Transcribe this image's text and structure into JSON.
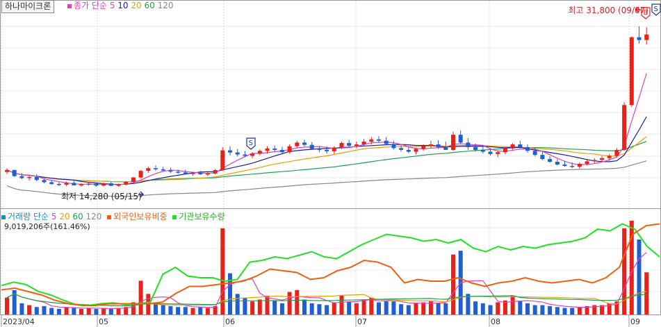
{
  "header": {
    "stock_name": "하나마이크론",
    "price_legend": {
      "label": "종가 단순",
      "periods": [
        "5",
        "10",
        "20",
        "60",
        "120"
      ]
    }
  },
  "volume_legend": {
    "label": "거래량 단순",
    "periods": [
      "5",
      "20",
      "60",
      "120"
    ],
    "foreign_label": "외국인보유비중",
    "inst_label": "기관보유수량",
    "total": "9,019,206주(161.46%)"
  },
  "annotations": {
    "high": "최고 31,800 (09/07)",
    "low": "최저 14,280 (05/15)",
    "badge_s": "S",
    "badge_b": "B"
  },
  "colors": {
    "up": "#e8221b",
    "down": "#1f5fd1",
    "ma5": "#e040c0",
    "ma10": "#1a1aa0",
    "ma20": "#e6a000",
    "ma60": "#1ea050",
    "ma120": "#888888",
    "foreign": "#ee6010",
    "inst": "#22e022"
  },
  "chart_data": {
    "type": "candlestick",
    "x_tick_labels": [
      "2023/04",
      "05",
      "06",
      "07",
      "08",
      "09"
    ],
    "price_range": [
      12000,
      33000
    ],
    "notes": "Daily OHLC approximated from pixel positions, price derived from labelled high/low.",
    "ohlc": [
      [
        15900,
        16280,
        15660,
        16110
      ],
      [
        16110,
        16110,
        15350,
        15430
      ],
      [
        15430,
        15770,
        15100,
        15220
      ],
      [
        15220,
        15560,
        14950,
        15340
      ],
      [
        15340,
        15660,
        14870,
        15010
      ],
      [
        15010,
        15220,
        14640,
        14770
      ],
      [
        14770,
        14980,
        14490,
        14580
      ],
      [
        14580,
        14770,
        14350,
        14490
      ],
      [
        14490,
        14850,
        14320,
        14700
      ],
      [
        14700,
        14980,
        14410,
        14430
      ],
      [
        14430,
        14660,
        14280,
        14540
      ],
      [
        14540,
        14810,
        14380,
        14620
      ],
      [
        14620,
        14700,
        14280,
        14400
      ],
      [
        14400,
        14720,
        14300,
        14650
      ],
      [
        14650,
        14800,
        14320,
        14380
      ],
      [
        14380,
        14620,
        14280,
        14520
      ],
      [
        14520,
        14900,
        14400,
        14810
      ],
      [
        14810,
        15350,
        14750,
        15290
      ],
      [
        15290,
        16100,
        15160,
        16010
      ],
      [
        16010,
        16500,
        15800,
        16300
      ],
      [
        16300,
        16600,
        16030,
        16180
      ],
      [
        16180,
        16480,
        15900,
        16050
      ],
      [
        16050,
        16350,
        15780,
        15920
      ],
      [
        15920,
        16150,
        15700,
        15840
      ],
      [
        15840,
        16150,
        15600,
        15700
      ],
      [
        15700,
        15900,
        15480,
        15780
      ],
      [
        15780,
        16020,
        15560,
        15640
      ],
      [
        15640,
        15900,
        15450,
        15720
      ],
      [
        15720,
        16200,
        15620,
        16100
      ],
      [
        16100,
        18600,
        16000,
        18250
      ],
      [
        18250,
        18700,
        17700,
        18020
      ],
      [
        18020,
        18400,
        17600,
        17800
      ],
      [
        17800,
        18200,
        17500,
        17650
      ],
      [
        17650,
        18050,
        17400,
        17900
      ],
      [
        17900,
        18350,
        17700,
        18200
      ],
      [
        18200,
        18700,
        17900,
        18450
      ],
      [
        18450,
        18800,
        18100,
        18300
      ],
      [
        18300,
        18650,
        17950,
        18050
      ],
      [
        18050,
        18900,
        17900,
        18700
      ],
      [
        18700,
        19300,
        18500,
        19100
      ],
      [
        19100,
        19400,
        18700,
        18850
      ],
      [
        18850,
        19150,
        18300,
        18420
      ],
      [
        18420,
        18700,
        18050,
        18300
      ],
      [
        18300,
        18650,
        17900,
        18150
      ],
      [
        18150,
        18700,
        17850,
        18550
      ],
      [
        18550,
        19200,
        18400,
        19050
      ],
      [
        19050,
        19400,
        18600,
        18750
      ],
      [
        18750,
        19200,
        18500,
        18900
      ],
      [
        18900,
        19500,
        18650,
        19200
      ],
      [
        19200,
        19700,
        18900,
        19450
      ],
      [
        19450,
        19800,
        19050,
        19300
      ],
      [
        19300,
        19700,
        18800,
        18950
      ],
      [
        18950,
        19300,
        18350,
        18500
      ],
      [
        18500,
        18850,
        18100,
        18300
      ],
      [
        18300,
        18600,
        17950,
        18100
      ],
      [
        18100,
        18550,
        17800,
        18400
      ],
      [
        18400,
        18900,
        18200,
        18750
      ],
      [
        18750,
        19300,
        18500,
        18900
      ],
      [
        18900,
        19350,
        18400,
        18600
      ],
      [
        18600,
        19200,
        18300,
        18300
      ],
      [
        18300,
        20300,
        18200,
        19950
      ],
      [
        19950,
        20400,
        18950,
        19100
      ],
      [
        19100,
        19600,
        18300,
        18600
      ],
      [
        18600,
        19000,
        18100,
        18300
      ],
      [
        18300,
        18650,
        17900,
        18100
      ],
      [
        18100,
        18500,
        17700,
        17850
      ],
      [
        17850,
        18250,
        17500,
        18050
      ],
      [
        18050,
        18600,
        17800,
        18450
      ],
      [
        18450,
        19050,
        18250,
        18900
      ],
      [
        18900,
        19300,
        18450,
        18600
      ],
      [
        18600,
        18900,
        18000,
        18200
      ],
      [
        18200,
        18500,
        17600,
        17750
      ],
      [
        17750,
        18100,
        17200,
        17300
      ],
      [
        17300,
        17600,
        16900,
        17000
      ],
      [
        17000,
        17300,
        16600,
        16700
      ],
      [
        16700,
        17100,
        16450,
        16550
      ],
      [
        16550,
        16950,
        16300,
        16450
      ],
      [
        16450,
        16900,
        16250,
        16780
      ],
      [
        16780,
        17200,
        16600,
        17050
      ],
      [
        17050,
        17400,
        16850,
        17200
      ],
      [
        17200,
        17600,
        16950,
        17400
      ],
      [
        17400,
        17850,
        17150,
        17650
      ],
      [
        17650,
        18500,
        17500,
        18300
      ],
      [
        18300,
        23500,
        18200,
        23200
      ],
      [
        23200,
        30700,
        23000,
        30600
      ],
      [
        30600,
        31800,
        29900,
        30300
      ],
      [
        30300,
        31700,
        29800,
        30900
      ]
    ],
    "volume_relative": [
      0.18,
      0.26,
      0.12,
      0.1,
      0.08,
      0.09,
      0.07,
      0.06,
      0.08,
      0.07,
      0.06,
      0.07,
      0.06,
      0.07,
      0.06,
      0.07,
      0.08,
      0.13,
      0.36,
      0.22,
      0.13,
      0.1,
      0.09,
      0.08,
      0.08,
      0.07,
      0.08,
      0.07,
      0.09,
      0.92,
      0.44,
      0.22,
      0.18,
      0.14,
      0.16,
      0.2,
      0.15,
      0.12,
      0.24,
      0.26,
      0.16,
      0.12,
      0.11,
      0.1,
      0.13,
      0.2,
      0.14,
      0.12,
      0.16,
      0.18,
      0.13,
      0.14,
      0.14,
      0.11,
      0.1,
      0.12,
      0.13,
      0.14,
      0.12,
      0.12,
      0.64,
      0.68,
      0.22,
      0.14,
      0.12,
      0.1,
      0.13,
      0.15,
      0.2,
      0.14,
      0.12,
      0.1,
      0.1,
      0.09,
      0.08,
      0.07,
      0.07,
      0.08,
      0.09,
      0.1,
      0.1,
      0.12,
      0.14,
      0.92,
      1.0,
      0.8,
      0.45
    ]
  }
}
